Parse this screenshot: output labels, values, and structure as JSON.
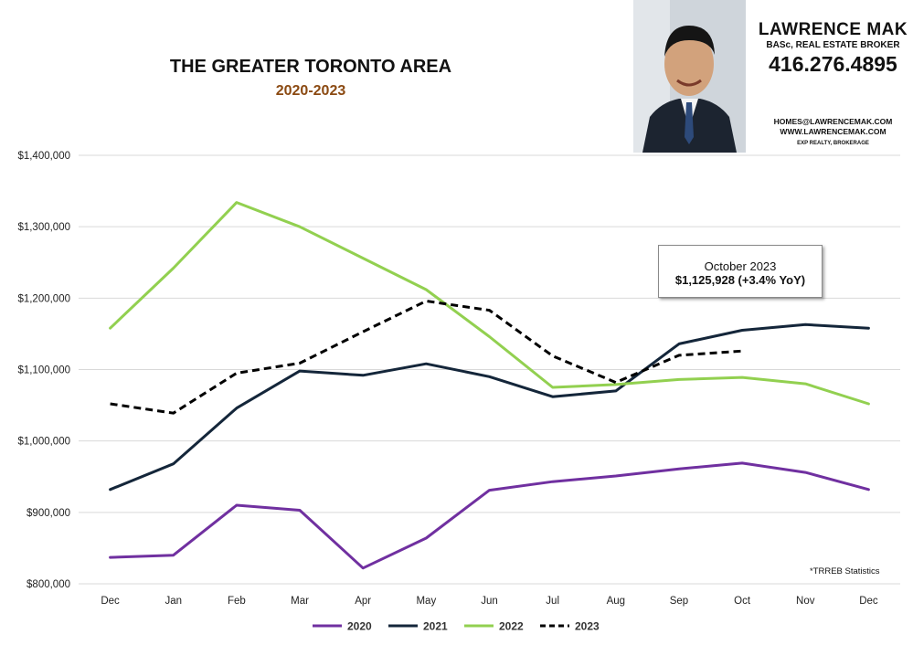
{
  "header": {
    "title": "THE GREATER TORONTO AREA",
    "subtitle": "2020-2023"
  },
  "agent": {
    "name": "LAWRENCE MAK",
    "credentials": "BASc, REAL ESTATE BROKER",
    "phone": "416.276.4895",
    "email": "HOMES@LAWRENCEMAK.COM",
    "website": "WWW.LAWRENCEMAK.COM",
    "brokerage": "EXP REALTY, BROKERAGE"
  },
  "callout": {
    "title": "October 2023",
    "value": "$1,125,928  (+3.4%  YoY)"
  },
  "source_note": "*TRREB Statistics",
  "chart_data": {
    "type": "line",
    "categories": [
      "Dec",
      "Jan",
      "Feb",
      "Mar",
      "Apr",
      "May",
      "Jun",
      "Jul",
      "Aug",
      "Sep",
      "Oct",
      "Nov",
      "Dec"
    ],
    "ylim": [
      800000,
      1400000
    ],
    "yticks": [
      800000,
      900000,
      1000000,
      1100000,
      1200000,
      1300000,
      1400000
    ],
    "ytick_labels": [
      "$800,000",
      "$900,000",
      "$1,000,000",
      "$1,100,000",
      "$1,200,000",
      "$1,300,000",
      "$1,400,000"
    ],
    "grid": true,
    "legend_position": "bottom",
    "series": [
      {
        "name": "2020",
        "color": "#7030a0",
        "dash": false,
        "values": [
          837000,
          840000,
          910000,
          903000,
          822000,
          864000,
          931000,
          943000,
          951000,
          961000,
          969000,
          956000,
          932000
        ]
      },
      {
        "name": "2021",
        "color": "#14263a",
        "dash": false,
        "values": [
          932000,
          968000,
          1046000,
          1098000,
          1092000,
          1108000,
          1090000,
          1062000,
          1070000,
          1136000,
          1155000,
          1163000,
          1158000
        ]
      },
      {
        "name": "2022",
        "color": "#92d050",
        "dash": false,
        "values": [
          1158000,
          1242000,
          1334000,
          1300000,
          1256000,
          1212000,
          1146000,
          1075000,
          1079000,
          1086000,
          1089000,
          1080000,
          1052000
        ]
      },
      {
        "name": "2023",
        "color": "#000000",
        "dash": true,
        "values": [
          1052000,
          1039000,
          1095000,
          1109000,
          1153000,
          1196000,
          1183000,
          1119000,
          1082000,
          1120000,
          1125928,
          null,
          null
        ]
      }
    ]
  }
}
